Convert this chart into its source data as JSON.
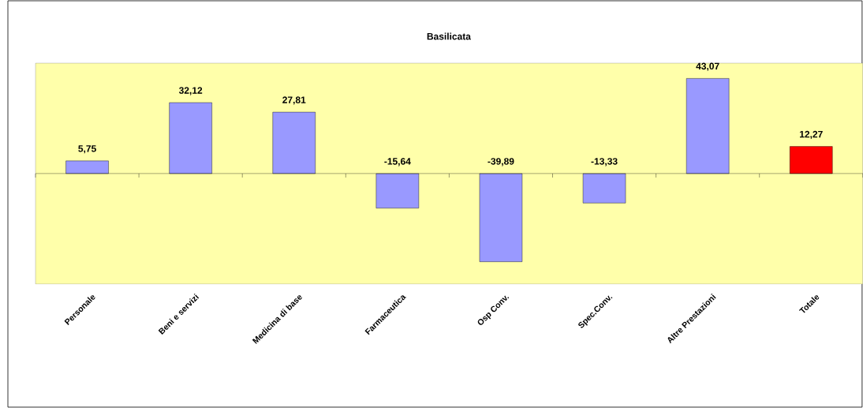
{
  "chart_data": {
    "type": "bar",
    "title": "Basilicata",
    "categories": [
      "Personale",
      "Beni e servizi",
      "Medicina di base",
      "Farmaceutica",
      "Osp  Conv.",
      "Spec.Conv.",
      "Altre Prestazioni",
      "Totale"
    ],
    "values": [
      5.75,
      32.12,
      27.81,
      -15.64,
      -39.89,
      -13.33,
      43.07,
      12.27
    ],
    "colors": [
      "#9999ff",
      "#9999ff",
      "#9999ff",
      "#9999ff",
      "#9999ff",
      "#9999ff",
      "#9999ff",
      "#ff0000"
    ],
    "value_labels": [
      "5,75",
      "32,12",
      "27,81",
      "-15,64",
      "-39,89",
      "-13,33",
      "43,07",
      "12,27"
    ],
    "ylim": [
      -50,
      50
    ],
    "tick_labels": "x"
  }
}
